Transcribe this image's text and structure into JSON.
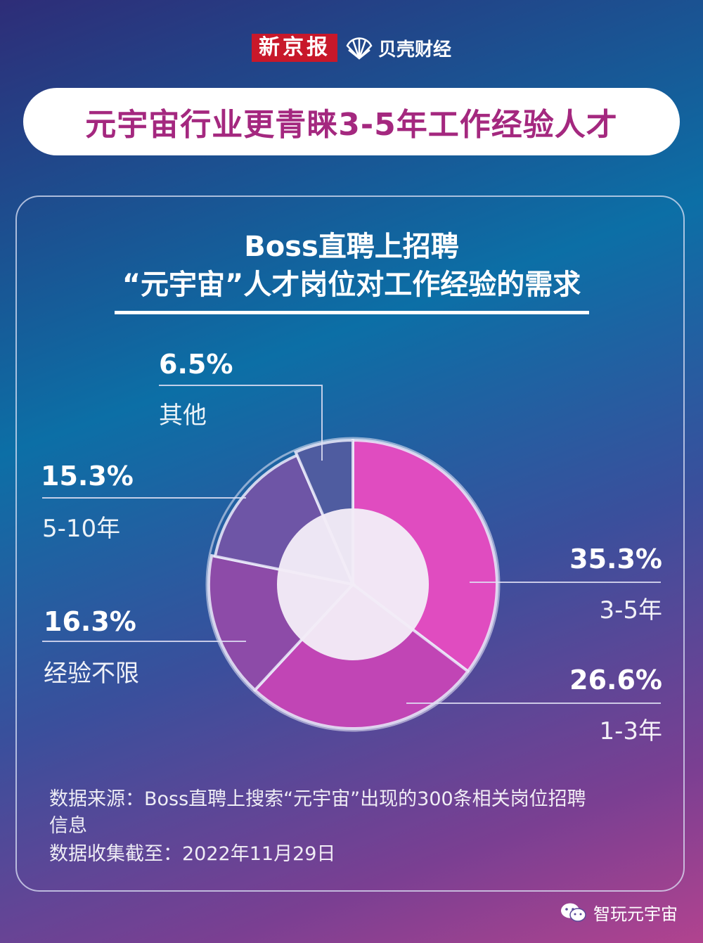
{
  "brand": {
    "left": "新京报",
    "right": "贝壳财经"
  },
  "title": "元宇宙行业更青睐3-5年工作经验人才",
  "subtitle": {
    "line1": "Boss直聘上招聘",
    "line2": "“元宇宙”人才岗位对工作经验的需求"
  },
  "chart_data": {
    "type": "pie",
    "variant": "donut",
    "slices": [
      {
        "label": "3-5年",
        "value": 35.3,
        "display": "35.3%",
        "color": "#e04cc0"
      },
      {
        "label": "1-3年",
        "value": 26.6,
        "display": "26.6%",
        "color": "#c145b5"
      },
      {
        "label": "经验不限",
        "value": 16.3,
        "display": "16.3%",
        "color": "#8d4ba8"
      },
      {
        "label": "5-10年",
        "value": 15.3,
        "display": "15.3%",
        "color": "#6e55a6"
      },
      {
        "label": "其他",
        "value": 6.5,
        "display": "6.5%",
        "color": "#4f5ca0"
      }
    ],
    "legend": "none",
    "grid": false
  },
  "notes": {
    "line1": "数据来源：Boss直聘上搜索“元宇宙”出现的300条相关岗位招聘",
    "line2": "信息",
    "line3": "数据收集截至：2022年11月29日"
  },
  "footer": {
    "account": "智玩元宇宙",
    "icon": "wechat-icon"
  }
}
